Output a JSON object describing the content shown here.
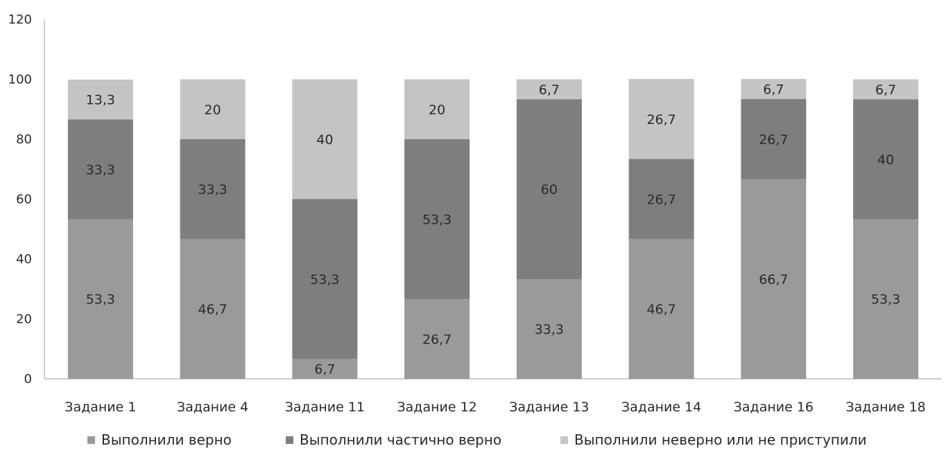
{
  "chart_data": {
    "type": "bar",
    "stacked": true,
    "categories": [
      "Задание 1",
      "Задание 4",
      "Задание 11",
      "Задание 12",
      "Задание 13",
      "Задание 14",
      "Задание 16",
      "Задание 18"
    ],
    "series": [
      {
        "name": "Выполнили верно",
        "values": [
          53.3,
          46.7,
          6.7,
          26.7,
          33.3,
          46.7,
          66.7,
          53.3
        ],
        "labels": [
          "53,3",
          "46,7",
          "6,7",
          "26,7",
          "33,3",
          "46,7",
          "66,7",
          "53,3"
        ],
        "color": "#9a9a9a"
      },
      {
        "name": "Выполнили частично верно",
        "values": [
          33.3,
          33.3,
          53.3,
          53.3,
          60,
          26.7,
          26.7,
          40
        ],
        "labels": [
          "33,3",
          "33,3",
          "53,3",
          "53,3",
          "60",
          "26,7",
          "26,7",
          "40"
        ],
        "color": "#7e7e7e"
      },
      {
        "name": "Выполнили неверно или не приступили",
        "values": [
          13.3,
          20,
          40,
          20,
          6.7,
          26.7,
          6.7,
          6.7
        ],
        "labels": [
          "13,3",
          "20",
          "40",
          "20",
          "6,7",
          "26,7",
          "6,7",
          "6,7"
        ],
        "color": "#c4c4c4"
      }
    ],
    "yticks": [
      "0",
      "20",
      "40",
      "60",
      "80",
      "100",
      "120"
    ],
    "ylim": [
      0,
      120
    ],
    "legend_position": "bottom",
    "grid": false
  }
}
